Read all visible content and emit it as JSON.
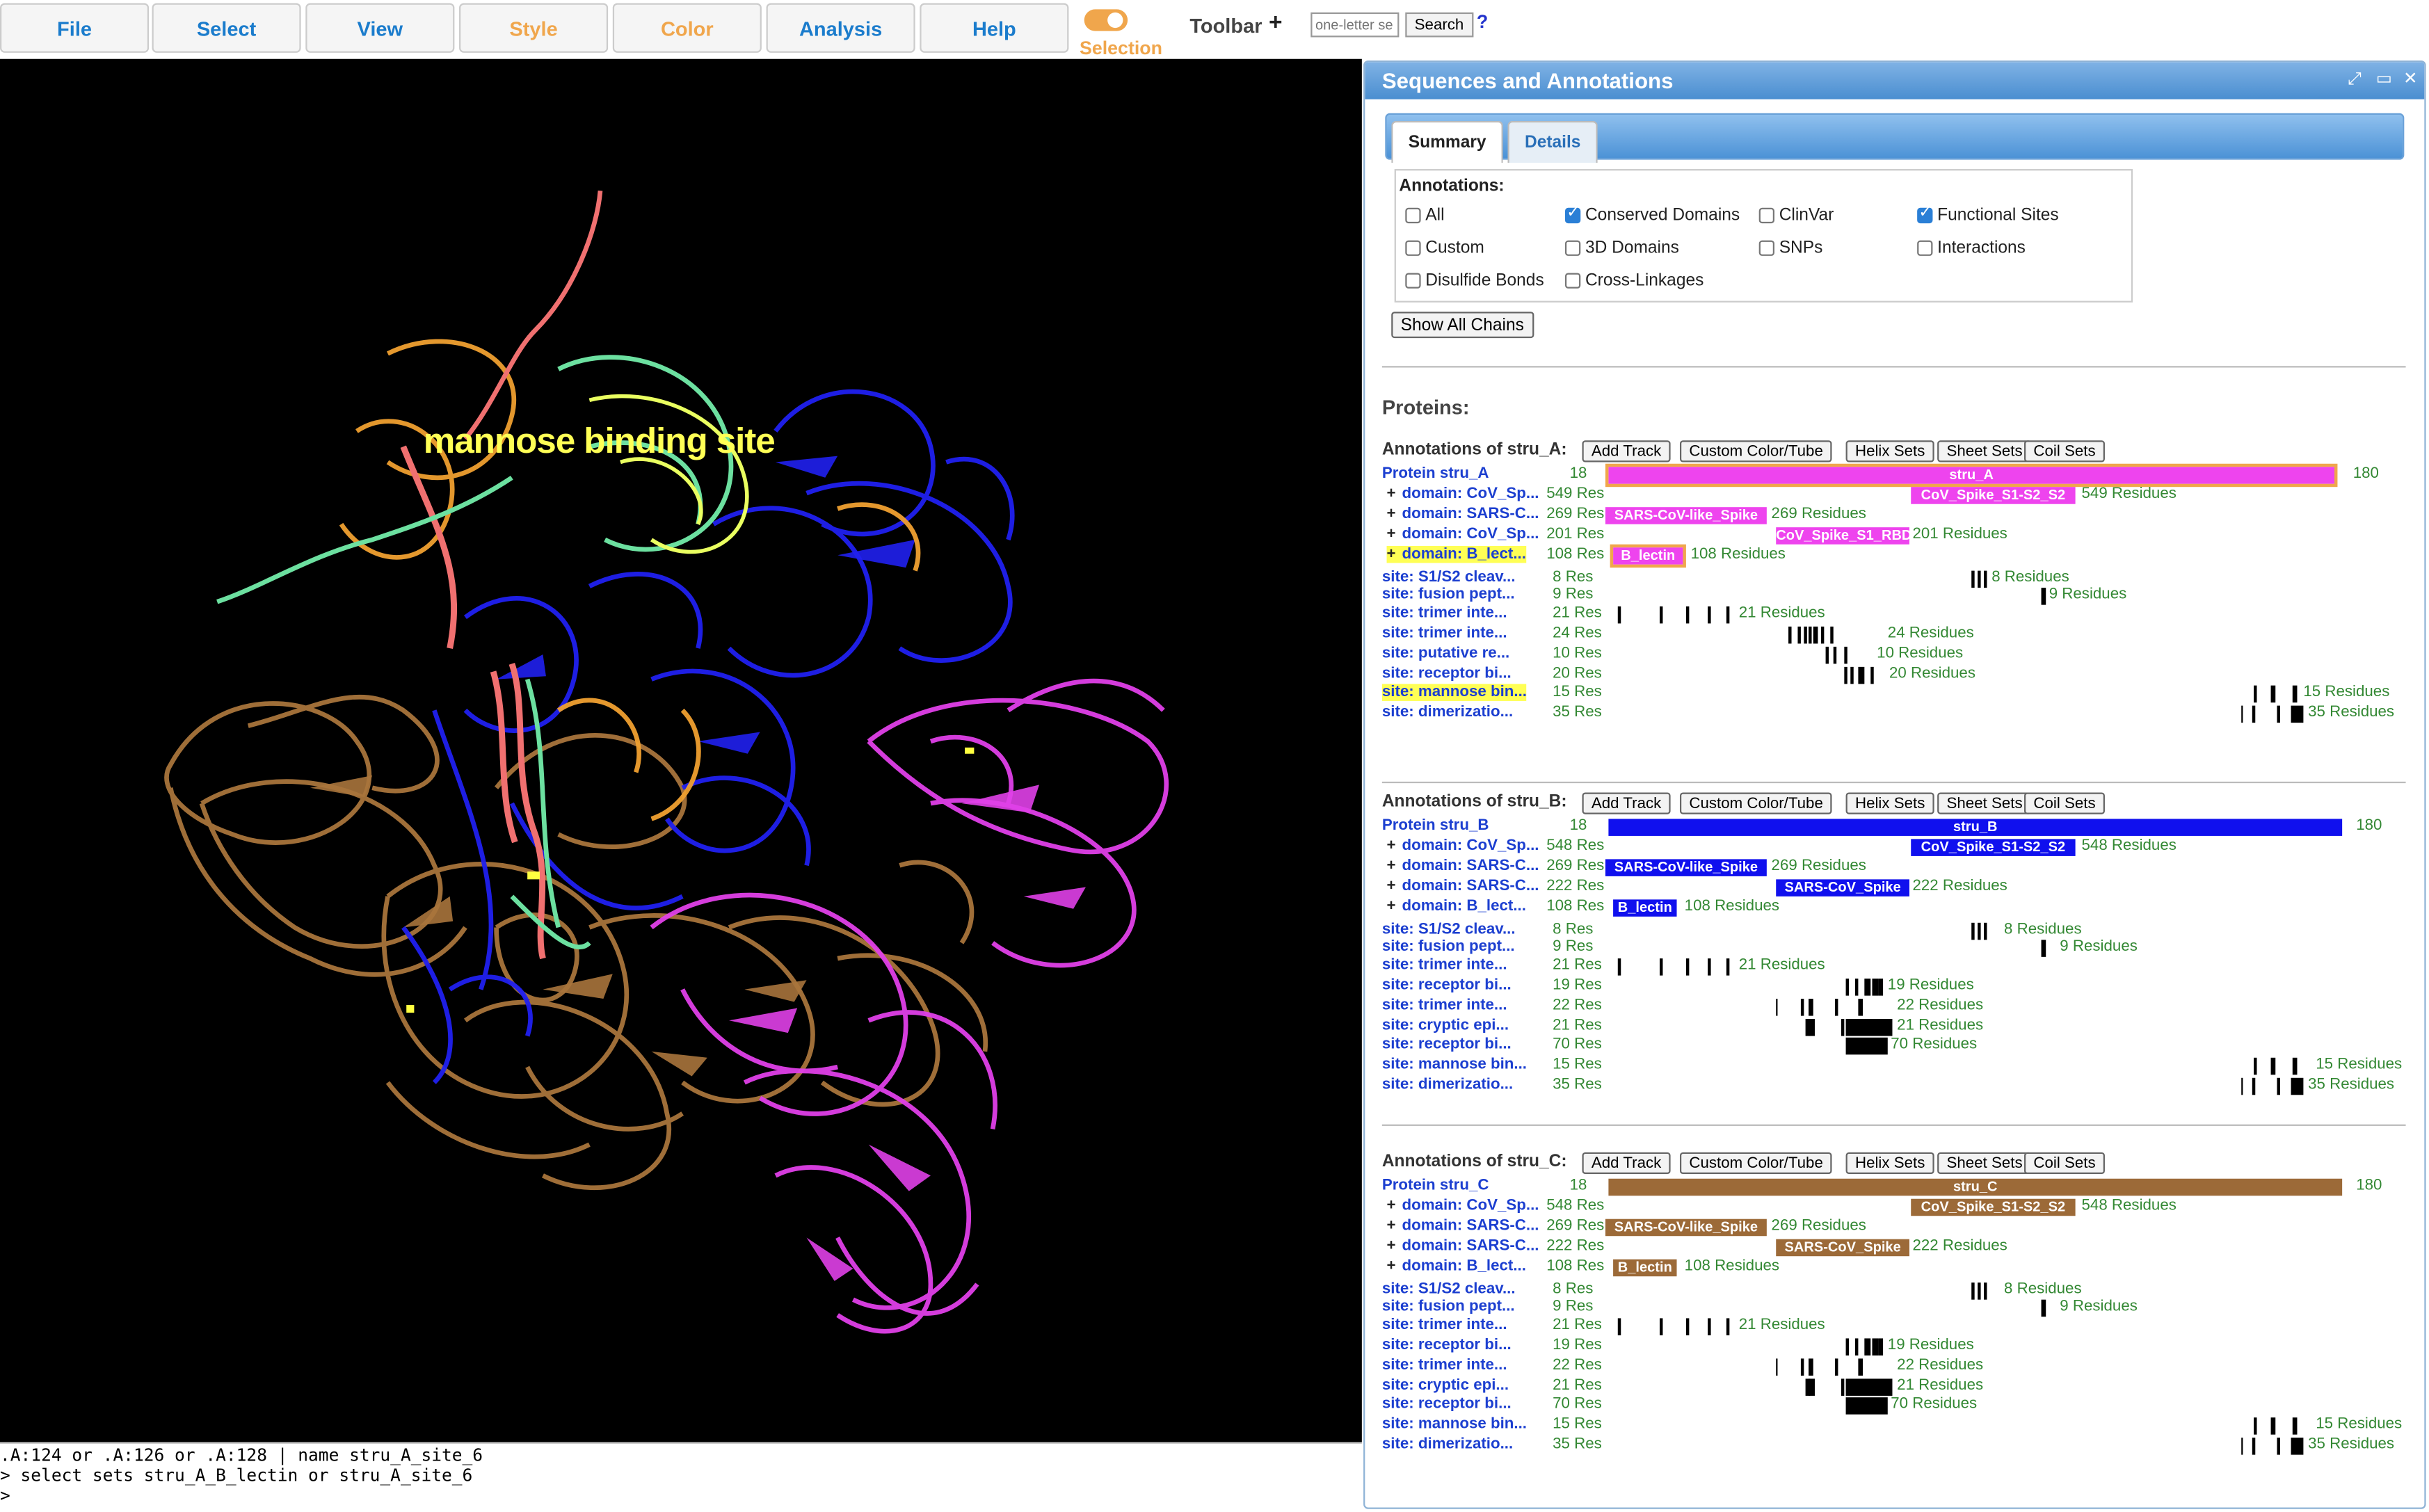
{
  "menu": {
    "items": [
      "File",
      "Select",
      "View",
      "Style",
      "Color",
      "Analysis",
      "Help"
    ],
    "selection_label": "Selection",
    "toolbar_label": "Toolbar",
    "toolbar_plus": "+",
    "search_placeholder": "one-letter se",
    "search_button": "Search",
    "help_mark": "?"
  },
  "viewer": {
    "overlay_label": "mannose binding site",
    "command_lines": [
      ".A:124 or .A:126 or .A:128 | name stru_A_site_6",
      "> select sets stru_A_B_lectin or stru_A_site_6",
      ">"
    ]
  },
  "panel": {
    "title": "Sequences and Annotations",
    "tabs": [
      "Summary",
      "Details"
    ],
    "annotations_label": "Annotations:",
    "checkboxes": [
      {
        "label": "All",
        "checked": false
      },
      {
        "label": "Conserved Domains",
        "checked": true
      },
      {
        "label": "ClinVar",
        "checked": false
      },
      {
        "label": "Functional Sites",
        "checked": true
      },
      {
        "label": "Custom",
        "checked": false
      },
      {
        "label": "3D Domains",
        "checked": false
      },
      {
        "label": "SNPs",
        "checked": false
      },
      {
        "label": "Interactions",
        "checked": false
      },
      {
        "label": "Disulfide Bonds",
        "checked": false
      },
      {
        "label": "Cross-Linkages",
        "checked": false
      }
    ],
    "show_all_chains": "Show All Chains",
    "proteins_label": "Proteins:",
    "track_buttons": [
      "Add Track",
      "Custom Color/Tube",
      "Helix Sets",
      "Sheet Sets",
      "Coil Sets"
    ]
  },
  "chains": [
    {
      "title": "Annotations of stru_A:",
      "protein": {
        "label": "Protein stru_A",
        "start": "18",
        "end": "180",
        "bar_label": "stru_A",
        "color": "#ee44ee"
      },
      "domains": [
        {
          "label": "domain: CoV_Sp...",
          "res": "549 Res",
          "bar": "CoV_Spike_S1-S2_S2",
          "tail": "549 Residues"
        },
        {
          "label": "domain: SARS-C...",
          "res": "269 Res",
          "bar": "SARS-CoV-like_Spike",
          "tail": "269 Residues"
        },
        {
          "label": "domain: CoV_Sp...",
          "res": "201 Res",
          "bar": "CoV_Spike_S1_RBD",
          "tail": "201 Residues"
        },
        {
          "label": "domain: B_lect...",
          "res": "108 Res",
          "bar": "B_lectin",
          "tail": "108 Residues"
        }
      ],
      "sites": [
        {
          "label": "site: S1/S2 cleav...",
          "res": "8 Res",
          "tail": "8 Residues"
        },
        {
          "label": "site: fusion pept...",
          "res": "9 Res",
          "tail": "9 Residues"
        },
        {
          "label": "site: trimer inte...",
          "res": "21 Res",
          "tail": "21 Residues"
        },
        {
          "label": "site: trimer inte...",
          "res": "24 Res",
          "tail": "24 Residues"
        },
        {
          "label": "site: putative re...",
          "res": "10 Res",
          "tail": "10 Residues"
        },
        {
          "label": "site: receptor bi...",
          "res": "20 Res",
          "tail": "20 Residues"
        },
        {
          "label": "site: mannose bin...",
          "res": "15 Res",
          "tail": "15 Residues"
        },
        {
          "label": "site: dimerizatio...",
          "res": "35 Res",
          "tail": "35 Residues"
        }
      ]
    },
    {
      "title": "Annotations of stru_B:",
      "protein": {
        "label": "Protein stru_B",
        "start": "18",
        "end": "180",
        "bar_label": "stru_B",
        "color": "#1010ee"
      },
      "domains": [
        {
          "label": "domain: CoV_Sp...",
          "res": "548 Res",
          "bar": "CoV_Spike_S1-S2_S2",
          "tail": "548 Residues"
        },
        {
          "label": "domain: SARS-C...",
          "res": "269 Res",
          "bar": "SARS-CoV-like_Spike",
          "tail": "269 Residues"
        },
        {
          "label": "domain: SARS-C...",
          "res": "222 Res",
          "bar": "SARS-CoV_Spike",
          "tail": "222 Residues"
        },
        {
          "label": "domain: B_lect...",
          "res": "108 Res",
          "bar": "B_lectin",
          "tail": "108 Residues"
        }
      ],
      "sites": [
        {
          "label": "site: S1/S2 cleav...",
          "res": "8 Res",
          "tail": "8 Residues"
        },
        {
          "label": "site: fusion pept...",
          "res": "9 Res",
          "tail": "9 Residues"
        },
        {
          "label": "site: trimer inte...",
          "res": "21 Res",
          "tail": "21 Residues"
        },
        {
          "label": "site: receptor bi...",
          "res": "19 Res",
          "tail": "19 Residues"
        },
        {
          "label": "site: trimer inte...",
          "res": "22 Res",
          "tail": "22 Residues"
        },
        {
          "label": "site: cryptic epi...",
          "res": "21 Res",
          "tail": "21 Residues"
        },
        {
          "label": "site: receptor bi...",
          "res": "70 Res",
          "tail": "70 Residues"
        },
        {
          "label": "site: mannose bin...",
          "res": "15 Res",
          "tail": "15 Residues"
        },
        {
          "label": "site: dimerizatio...",
          "res": "35 Res",
          "tail": "35 Residues"
        }
      ]
    },
    {
      "title": "Annotations of stru_C:",
      "protein": {
        "label": "Protein stru_C",
        "start": "18",
        "end": "180",
        "bar_label": "stru_C",
        "color": "#9c6a38"
      },
      "domains": [
        {
          "label": "domain: CoV_Sp...",
          "res": "548 Res",
          "bar": "CoV_Spike_S1-S2_S2",
          "tail": "548 Residues"
        },
        {
          "label": "domain: SARS-C...",
          "res": "269 Res",
          "bar": "SARS-CoV-like_Spike",
          "tail": "269 Residues"
        },
        {
          "label": "domain: SARS-C...",
          "res": "222 Res",
          "bar": "SARS-CoV_Spike",
          "tail": "222 Residues"
        },
        {
          "label": "domain: B_lect...",
          "res": "108 Res",
          "bar": "B_lectin",
          "tail": "108 Residues"
        }
      ],
      "sites": [
        {
          "label": "site: S1/S2 cleav...",
          "res": "8 Res",
          "tail": "8 Residues"
        },
        {
          "label": "site: fusion pept...",
          "res": "9 Res",
          "tail": "9 Residues"
        },
        {
          "label": "site: trimer inte...",
          "res": "21 Res",
          "tail": "21 Residues"
        },
        {
          "label": "site: receptor bi...",
          "res": "19 Res",
          "tail": "19 Residues"
        },
        {
          "label": "site: trimer inte...",
          "res": "22 Res",
          "tail": "22 Residues"
        },
        {
          "label": "site: cryptic epi...",
          "res": "21 Res",
          "tail": "21 Residues"
        },
        {
          "label": "site: receptor bi...",
          "res": "70 Res",
          "tail": "70 Residues"
        },
        {
          "label": "site: mannose bin...",
          "res": "15 Res",
          "tail": "15 Residues"
        },
        {
          "label": "site: dimerizatio...",
          "res": "35 Res",
          "tail": "35 Residues"
        }
      ]
    }
  ],
  "colors": {
    "menu_blue": "#1b7ccc",
    "menu_orange": "#f0a64c",
    "link_blue": "#1c3fd0",
    "residue_green": "#338833",
    "highlight_yellow": "#ffff55"
  }
}
